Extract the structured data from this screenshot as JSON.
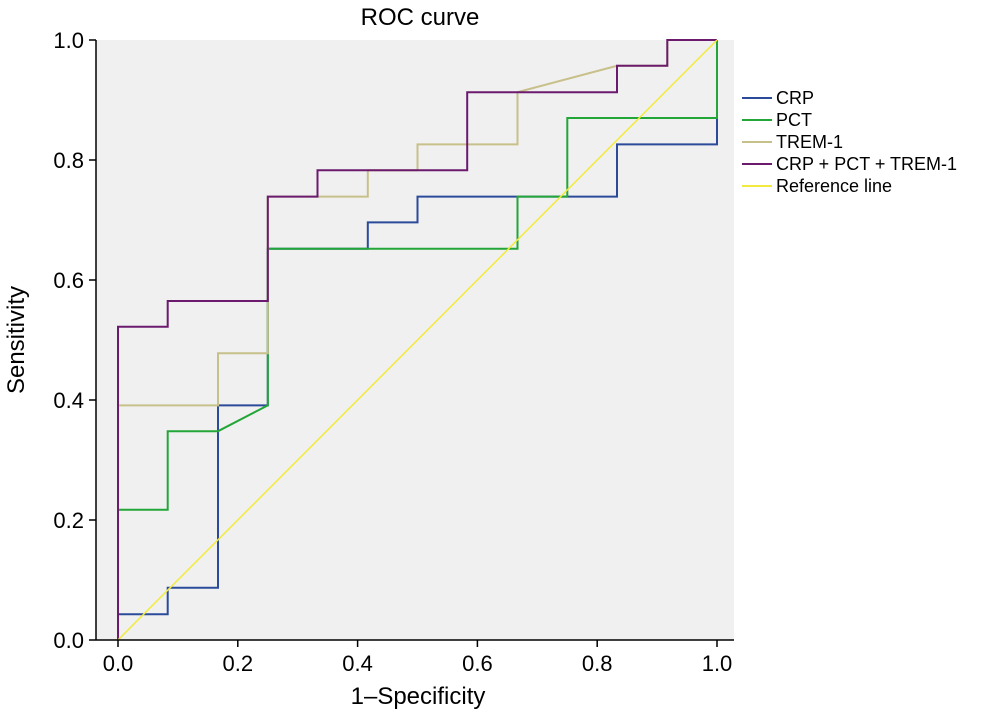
{
  "chart_data": {
    "type": "line",
    "title": "ROC curve",
    "xlabel": "1–Specificity",
    "ylabel": "Sensitivity",
    "xlim": [
      0,
      1
    ],
    "ylim": [
      0,
      1
    ],
    "xticks": [
      "0.0",
      "0.2",
      "0.4",
      "0.6",
      "0.8",
      "1.0"
    ],
    "yticks": [
      "0.0",
      "0.2",
      "0.4",
      "0.6",
      "0.8",
      "1.0"
    ],
    "legend_position": "right",
    "background": "#f0f0f0",
    "series": [
      {
        "name": "CRP",
        "color": "#2b4a9a",
        "x": [
          0,
          0,
          0.083,
          0.083,
          0.167,
          0.167,
          0.25,
          0.25,
          0.417,
          0.417,
          0.5,
          0.5,
          0.833,
          0.833,
          1,
          1
        ],
        "y": [
          0,
          0.043,
          0.043,
          0.087,
          0.087,
          0.391,
          0.391,
          0.652,
          0.652,
          0.696,
          0.696,
          0.739,
          0.739,
          0.826,
          0.826,
          1
        ]
      },
      {
        "name": "PCT",
        "color": "#22a637",
        "x": [
          0,
          0,
          0.083,
          0.083,
          0.167,
          0.25,
          0.25,
          0.667,
          0.667,
          0.75,
          0.75,
          1,
          1
        ],
        "y": [
          0,
          0.217,
          0.217,
          0.348,
          0.348,
          0.391,
          0.652,
          0.652,
          0.739,
          0.739,
          0.87,
          0.87,
          1
        ]
      },
      {
        "name": "TREM-1",
        "color": "#c8c08a",
        "x": [
          0,
          0,
          0.167,
          0.167,
          0.25,
          0.25,
          0.333,
          0.417,
          0.417,
          0.5,
          0.5,
          0.667,
          0.667,
          0.833,
          0.833,
          0.917,
          0.917,
          1
        ],
        "y": [
          0,
          0.391,
          0.391,
          0.478,
          0.478,
          0.739,
          0.739,
          0.739,
          0.783,
          0.783,
          0.826,
          0.826,
          0.913,
          0.957,
          0.957,
          0.957,
          1,
          1
        ]
      },
      {
        "name": "CRP + PCT + TREM-1",
        "color": "#6b1a6e",
        "x": [
          0,
          0,
          0.083,
          0.083,
          0.25,
          0.25,
          0.333,
          0.333,
          0.583,
          0.583,
          0.833,
          0.833,
          0.917,
          0.917,
          1
        ],
        "y": [
          0,
          0.522,
          0.522,
          0.565,
          0.565,
          0.739,
          0.739,
          0.783,
          0.783,
          0.913,
          0.913,
          0.957,
          0.957,
          1,
          1
        ]
      },
      {
        "name": "Reference line",
        "color": "#f2ea3c",
        "x": [
          0,
          1
        ],
        "y": [
          0,
          1
        ]
      }
    ]
  }
}
